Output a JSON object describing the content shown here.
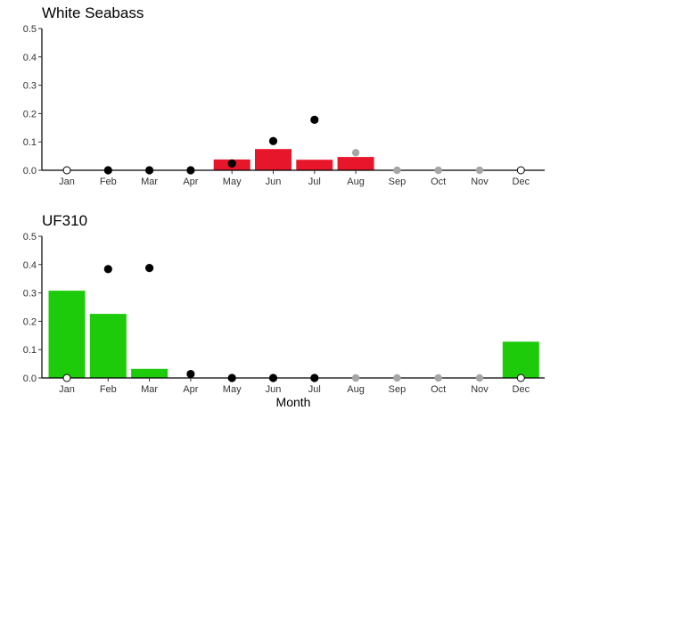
{
  "chart_data": [
    {
      "type": "bar",
      "title": "White Seabass",
      "categories": [
        "Jan",
        "Feb",
        "Mar",
        "Apr",
        "May",
        "Jun",
        "Jul",
        "Aug",
        "Sep",
        "Oct",
        "Nov",
        "Dec"
      ],
      "ylim": [
        0,
        0.5
      ],
      "yticks": [
        "0.0",
        "0.1",
        "0.2",
        "0.3",
        "0.4",
        "0.5"
      ],
      "xlabel": "",
      "ylabel": "",
      "bar_color": "#e8162a",
      "bars": [
        null,
        null,
        null,
        null,
        0.038,
        0.075,
        0.037,
        0.047,
        null,
        null,
        null,
        null
      ],
      "points": [
        {
          "month": "Jan",
          "value": 0.0,
          "style": "open"
        },
        {
          "month": "Feb",
          "value": 0.0,
          "style": "black"
        },
        {
          "month": "Mar",
          "value": 0.0,
          "style": "black"
        },
        {
          "month": "Apr",
          "value": 0.0,
          "style": "black"
        },
        {
          "month": "May",
          "value": 0.024,
          "style": "black"
        },
        {
          "month": "Jun",
          "value": 0.103,
          "style": "black"
        },
        {
          "month": "Jul",
          "value": 0.178,
          "style": "black"
        },
        {
          "month": "Aug",
          "value": 0.062,
          "style": "grey"
        },
        {
          "month": "Sep",
          "value": 0.0,
          "style": "grey"
        },
        {
          "month": "Oct",
          "value": 0.0,
          "style": "grey"
        },
        {
          "month": "Nov",
          "value": 0.0,
          "style": "grey"
        },
        {
          "month": "Dec",
          "value": 0.0,
          "style": "open"
        }
      ]
    },
    {
      "type": "bar",
      "title": "UF310",
      "categories": [
        "Jan",
        "Feb",
        "Mar",
        "Apr",
        "May",
        "Jun",
        "Jul",
        "Aug",
        "Sep",
        "Oct",
        "Nov",
        "Dec"
      ],
      "ylim": [
        0,
        0.5
      ],
      "yticks": [
        "0.0",
        "0.1",
        "0.2",
        "0.3",
        "0.4",
        "0.5"
      ],
      "xlabel": "Month",
      "ylabel": "",
      "bar_color": "#1ecb0a",
      "bars": [
        0.308,
        0.226,
        0.032,
        null,
        null,
        null,
        null,
        null,
        null,
        null,
        null,
        0.128
      ],
      "points": [
        {
          "month": "Jan",
          "value": 0.0,
          "style": "open"
        },
        {
          "month": "Feb",
          "value": 0.384,
          "style": "black"
        },
        {
          "month": "Mar",
          "value": 0.388,
          "style": "black"
        },
        {
          "month": "Apr",
          "value": 0.014,
          "style": "black"
        },
        {
          "month": "May",
          "value": 0.0,
          "style": "black"
        },
        {
          "month": "Jun",
          "value": 0.0,
          "style": "black"
        },
        {
          "month": "Jul",
          "value": 0.0,
          "style": "black"
        },
        {
          "month": "Aug",
          "value": 0.0,
          "style": "grey"
        },
        {
          "month": "Sep",
          "value": 0.0,
          "style": "grey"
        },
        {
          "month": "Oct",
          "value": 0.0,
          "style": "grey"
        },
        {
          "month": "Nov",
          "value": 0.0,
          "style": "grey"
        },
        {
          "month": "Dec",
          "value": 0.0,
          "style": "open"
        }
      ]
    }
  ],
  "colors": {
    "black_point": "#000000",
    "grey_point": "#a6a6a6"
  }
}
